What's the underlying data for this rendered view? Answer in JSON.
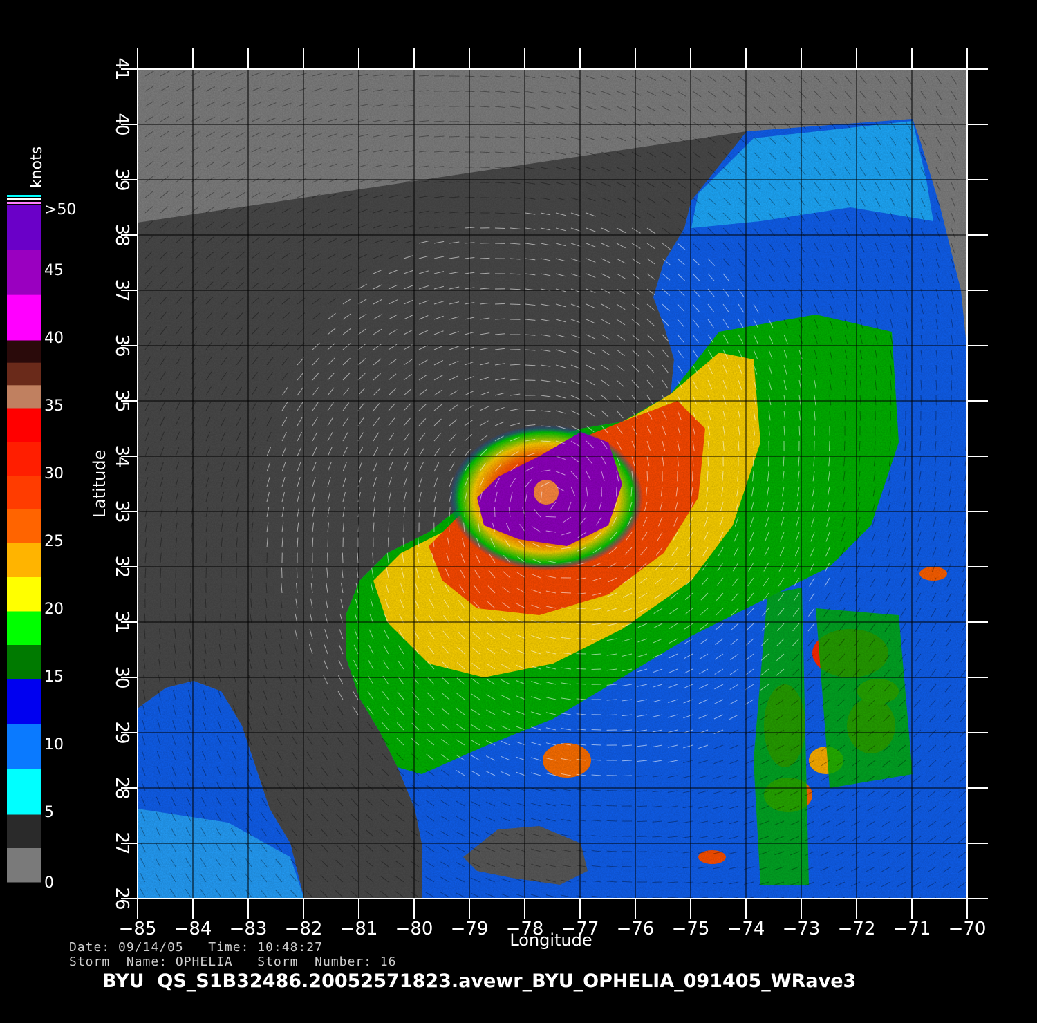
{
  "map": {
    "lon_range": [
      -85,
      -70
    ],
    "lat_range": [
      26,
      41
    ],
    "lon_ticks": [
      -85,
      -84,
      -83,
      -82,
      -81,
      -80,
      -79,
      -78,
      -77,
      -76,
      -75,
      -74,
      -73,
      -72,
      -71,
      -70
    ],
    "lat_ticks": [
      26,
      27,
      28,
      29,
      30,
      31,
      32,
      33,
      34,
      35,
      36,
      37,
      38,
      39,
      40,
      41
    ],
    "xlabel": "Longitude",
    "ylabel": "Latitude",
    "grid": true,
    "colors": {
      "land": "#4a4a4a",
      "no_data": "#808080",
      "coast_halo": "#7a7a7a"
    },
    "storm_center": {
      "lon": -77.5,
      "lat": 33.2
    }
  },
  "legend": {
    "unit": "knots",
    "tick_labels": [
      {
        "value": ">50",
        "level": 50
      },
      {
        "value": "45",
        "level": 45
      },
      {
        "value": "40",
        "level": 40
      },
      {
        "value": "35",
        "level": 35
      },
      {
        "value": "30",
        "level": 30
      },
      {
        "value": "25",
        "level": 25
      },
      {
        "value": "20",
        "level": 20
      },
      {
        "value": "15",
        "level": 15
      },
      {
        "value": "10",
        "level": 10
      },
      {
        "value": "5",
        "level": 5
      },
      {
        "value": "0",
        "level": 0
      }
    ],
    "bands": [
      {
        "from": 0,
        "to": 5,
        "colors": [
          "#7a7a7a",
          "#2a2a2a"
        ]
      },
      {
        "from": 5,
        "to": 15,
        "colors": [
          "#00ffff",
          "#0a7aff",
          "#0000f0"
        ]
      },
      {
        "from": 15,
        "to": 20,
        "colors": [
          "#007a00",
          "#00ff00"
        ]
      },
      {
        "from": 20,
        "to": 30,
        "colors": [
          "#ffff00",
          "#ffb400",
          "#ff6400",
          "#ff3c00"
        ]
      },
      {
        "from": 30,
        "to": 35,
        "colors": [
          "#ff1e00",
          "#ff0000"
        ]
      },
      {
        "from": 35,
        "to": 40,
        "colors": [
          "#c08060",
          "#6a2a1a",
          "#2a0a0a"
        ]
      },
      {
        "from": 40,
        "to": 50,
        "colors": [
          "#ff00ff",
          "#9a00c0",
          "#6a00c8"
        ]
      }
    ]
  },
  "meta": {
    "date_line": "Date: 09/14/05   Time: 10:48:27",
    "storm_line": "Storm  Name: OPHELIA   Storm  Number: 16",
    "filename": "BYU  QS_S1B32486.20052571823.avewr_BYU_OPHELIA_091405_WRave3"
  }
}
